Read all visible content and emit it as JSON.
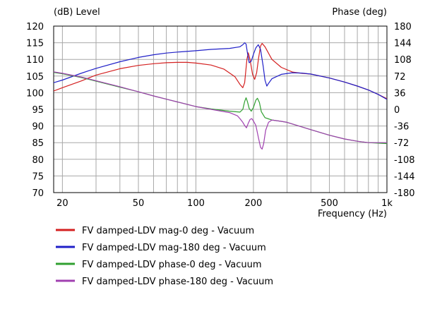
{
  "chart_data": {
    "type": "line",
    "y_left_label": "(dB)  Level",
    "y_right_label": "Phase  (deg)",
    "x_label": "Frequency  (Hz)",
    "x_scale": "log",
    "xlim": [
      18,
      1000
    ],
    "ylim_left": [
      70,
      120
    ],
    "ylim_right": [
      -180,
      180
    ],
    "y_left_ticks": [
      "120",
      "115",
      "110",
      "105",
      "100",
      "95",
      "90",
      "85",
      "80",
      "75",
      "70"
    ],
    "y_right_ticks": [
      "180",
      "144",
      "108",
      "72",
      "36",
      "0",
      "-36",
      "-72",
      "-108",
      "-144",
      "-180"
    ],
    "x_ticks": [
      {
        "value": 20,
        "label": "20"
      },
      {
        "value": 50,
        "label": "50"
      },
      {
        "value": 100,
        "label": "100"
      },
      {
        "value": 200,
        "label": "200"
      },
      {
        "value": 500,
        "label": "500"
      },
      {
        "value": 1000,
        "label": "1k"
      }
    ],
    "series": [
      {
        "name": "FV damped-LDV mag-0 deg - Vacuum",
        "color": "#d42020",
        "axis": "left",
        "points": [
          [
            18,
            100.5
          ],
          [
            20,
            101.5
          ],
          [
            25,
            103.5
          ],
          [
            30,
            105.3
          ],
          [
            40,
            107.2
          ],
          [
            50,
            108.2
          ],
          [
            60,
            108.7
          ],
          [
            70,
            109.0
          ],
          [
            80,
            109.1
          ],
          [
            90,
            109.1
          ],
          [
            100,
            108.9
          ],
          [
            120,
            108.3
          ],
          [
            140,
            107.1
          ],
          [
            160,
            104.8
          ],
          [
            170,
            102.5
          ],
          [
            176,
            101.5
          ],
          [
            180,
            103.0
          ],
          [
            185,
            110.0
          ],
          [
            188,
            112.0
          ],
          [
            192,
            110.0
          ],
          [
            198,
            105.5
          ],
          [
            203,
            104.0
          ],
          [
            208,
            106.0
          ],
          [
            213,
            110.5
          ],
          [
            218,
            114.0
          ],
          [
            222,
            114.8
          ],
          [
            230,
            113.8
          ],
          [
            250,
            110.0
          ],
          [
            280,
            107.6
          ],
          [
            320,
            106.2
          ],
          [
            360,
            105.8
          ],
          [
            400,
            105.6
          ],
          [
            500,
            104.4
          ],
          [
            600,
            103.2
          ],
          [
            700,
            102.0
          ],
          [
            800,
            100.8
          ],
          [
            900,
            99.5
          ],
          [
            1000,
            98.2
          ]
        ]
      },
      {
        "name": "FV damped-LDV mag-180 deg - Vacuum",
        "color": "#2020c8",
        "axis": "left",
        "points": [
          [
            18,
            103.0
          ],
          [
            20,
            103.8
          ],
          [
            25,
            105.8
          ],
          [
            30,
            107.3
          ],
          [
            40,
            109.3
          ],
          [
            50,
            110.6
          ],
          [
            60,
            111.4
          ],
          [
            70,
            111.9
          ],
          [
            80,
            112.2
          ],
          [
            100,
            112.6
          ],
          [
            120,
            113.0
          ],
          [
            150,
            113.3
          ],
          [
            170,
            113.8
          ],
          [
            176,
            114.4
          ],
          [
            180,
            115.0
          ],
          [
            183,
            114.6
          ],
          [
            186,
            112.0
          ],
          [
            190,
            109.0
          ],
          [
            195,
            109.5
          ],
          [
            200,
            111.5
          ],
          [
            206,
            113.5
          ],
          [
            212,
            114.4
          ],
          [
            218,
            113.0
          ],
          [
            225,
            108.0
          ],
          [
            230,
            103.8
          ],
          [
            235,
            102.0
          ],
          [
            240,
            102.8
          ],
          [
            250,
            104.2
          ],
          [
            280,
            105.5
          ],
          [
            320,
            106.0
          ],
          [
            360,
            105.9
          ],
          [
            400,
            105.6
          ],
          [
            500,
            104.4
          ],
          [
            600,
            103.2
          ],
          [
            700,
            102.0
          ],
          [
            800,
            100.8
          ],
          [
            900,
            99.5
          ],
          [
            1000,
            98.0
          ]
        ]
      },
      {
        "name": "FV damped-LDV phase-0 deg - Vacuum",
        "color": "#30a030",
        "axis": "right",
        "points": [
          [
            18,
            80
          ],
          [
            20,
            77
          ],
          [
            25,
            69
          ],
          [
            30,
            61
          ],
          [
            40,
            48
          ],
          [
            50,
            38
          ],
          [
            60,
            29
          ],
          [
            70,
            22
          ],
          [
            80,
            16
          ],
          [
            100,
            6
          ],
          [
            120,
            1
          ],
          [
            150,
            -4
          ],
          [
            170,
            -6
          ],
          [
            176,
            0
          ],
          [
            180,
            17
          ],
          [
            183,
            25
          ],
          [
            186,
            17
          ],
          [
            190,
            2
          ],
          [
            195,
            -4
          ],
          [
            200,
            4
          ],
          [
            206,
            20
          ],
          [
            210,
            24
          ],
          [
            215,
            15
          ],
          [
            220,
            -5
          ],
          [
            230,
            -18
          ],
          [
            250,
            -23
          ],
          [
            280,
            -26
          ],
          [
            300,
            -28
          ],
          [
            400,
            -44
          ],
          [
            500,
            -56
          ],
          [
            600,
            -64
          ],
          [
            700,
            -69
          ],
          [
            800,
            -72
          ],
          [
            900,
            -73
          ],
          [
            1000,
            -74
          ]
        ]
      },
      {
        "name": "FV damped-LDV phase-180 deg - Vacuum",
        "color": "#a040b0",
        "axis": "right",
        "points": [
          [
            18,
            81
          ],
          [
            20,
            78
          ],
          [
            25,
            70
          ],
          [
            30,
            62
          ],
          [
            40,
            49
          ],
          [
            50,
            38
          ],
          [
            60,
            29
          ],
          [
            70,
            22
          ],
          [
            80,
            16
          ],
          [
            100,
            6
          ],
          [
            120,
            0
          ],
          [
            150,
            -7
          ],
          [
            165,
            -14
          ],
          [
            170,
            -20
          ],
          [
            176,
            -28
          ],
          [
            180,
            -35
          ],
          [
            184,
            -40
          ],
          [
            188,
            -30
          ],
          [
            192,
            -22
          ],
          [
            196,
            -20
          ],
          [
            200,
            -25
          ],
          [
            206,
            -35
          ],
          [
            212,
            -60
          ],
          [
            218,
            -82
          ],
          [
            222,
            -86
          ],
          [
            226,
            -75
          ],
          [
            232,
            -45
          ],
          [
            240,
            -28
          ],
          [
            250,
            -23
          ],
          [
            280,
            -26
          ],
          [
            300,
            -28
          ],
          [
            400,
            -44
          ],
          [
            500,
            -56
          ],
          [
            600,
            -64
          ],
          [
            700,
            -69
          ],
          [
            800,
            -72
          ],
          [
            900,
            -72
          ],
          [
            1000,
            -72
          ]
        ]
      }
    ]
  }
}
